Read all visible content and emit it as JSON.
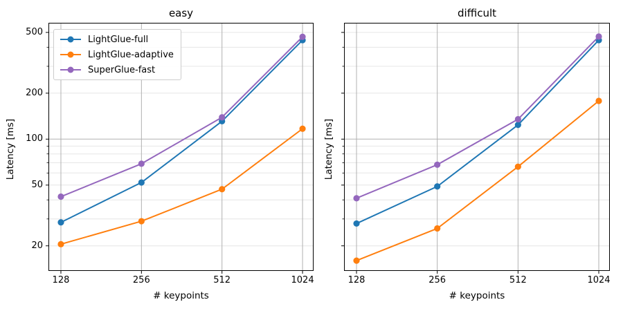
{
  "figure": {
    "background": "#ffffff"
  },
  "colors": {
    "grid_major": "#b0b0b0",
    "grid_minor": "#e6e6e6",
    "spine": "#000000",
    "text": "#000000"
  },
  "chart_data": [
    {
      "type": "line",
      "title": "easy",
      "xlabel": "# keypoints",
      "ylabel": "Latency [ms]",
      "xscale": "log2",
      "yscale": "log10",
      "x": [
        128,
        256,
        512,
        1024
      ],
      "x_ticklabels": [
        "128",
        "256",
        "512",
        "1024"
      ],
      "xlim": [
        115,
        1126
      ],
      "ylim": [
        13.7,
        578
      ],
      "y_ticks": [
        20,
        50,
        100,
        200,
        500
      ],
      "y_ticklabels": [
        "20",
        "50",
        "100",
        "200",
        "500"
      ],
      "show_y_ticklabels": true,
      "y_minor_ticks": [
        30,
        40,
        60,
        70,
        80,
        90,
        300,
        400
      ],
      "y_gridlines_major": [
        100
      ],
      "y_gridlines_minor": [
        20,
        30,
        40,
        50,
        60,
        70,
        80,
        90,
        200,
        300,
        400,
        500
      ],
      "grid": true,
      "legend_position": "upper left",
      "series": [
        {
          "name": "LightGlue-full",
          "color": "#1f77b4",
          "values": [
            28.5,
            52,
            131,
            445
          ]
        },
        {
          "name": "LightGlue-adaptive",
          "color": "#ff7f0e",
          "values": [
            20.5,
            29,
            47,
            117
          ]
        },
        {
          "name": "SuperGlue-fast",
          "color": "#9467bd",
          "values": [
            42,
            69,
            139,
            468
          ]
        }
      ]
    },
    {
      "type": "line",
      "title": "difficult",
      "xlabel": "# keypoints",
      "ylabel": "Latency [ms]",
      "xscale": "log2",
      "yscale": "log10",
      "x": [
        128,
        256,
        512,
        1024
      ],
      "x_ticklabels": [
        "128",
        "256",
        "512",
        "1024"
      ],
      "xlim": [
        115,
        1126
      ],
      "ylim": [
        13.7,
        578
      ],
      "y_ticks": [
        20,
        50,
        100,
        200,
        500
      ],
      "y_ticklabels": [
        "20",
        "50",
        "100",
        "200",
        "500"
      ],
      "show_y_ticklabels": false,
      "y_minor_ticks": [
        30,
        40,
        60,
        70,
        80,
        90,
        300,
        400
      ],
      "y_gridlines_major": [
        100
      ],
      "y_gridlines_minor": [
        20,
        30,
        40,
        50,
        60,
        70,
        80,
        90,
        200,
        300,
        400,
        500
      ],
      "grid": true,
      "legend_position": "none",
      "series": [
        {
          "name": "LightGlue-full",
          "color": "#1f77b4",
          "values": [
            28,
            49,
            124,
            445
          ]
        },
        {
          "name": "LightGlue-adaptive",
          "color": "#ff7f0e",
          "values": [
            16,
            26,
            66,
            178
          ]
        },
        {
          "name": "SuperGlue-fast",
          "color": "#9467bd",
          "values": [
            41,
            68,
            135,
            470
          ]
        }
      ]
    }
  ]
}
